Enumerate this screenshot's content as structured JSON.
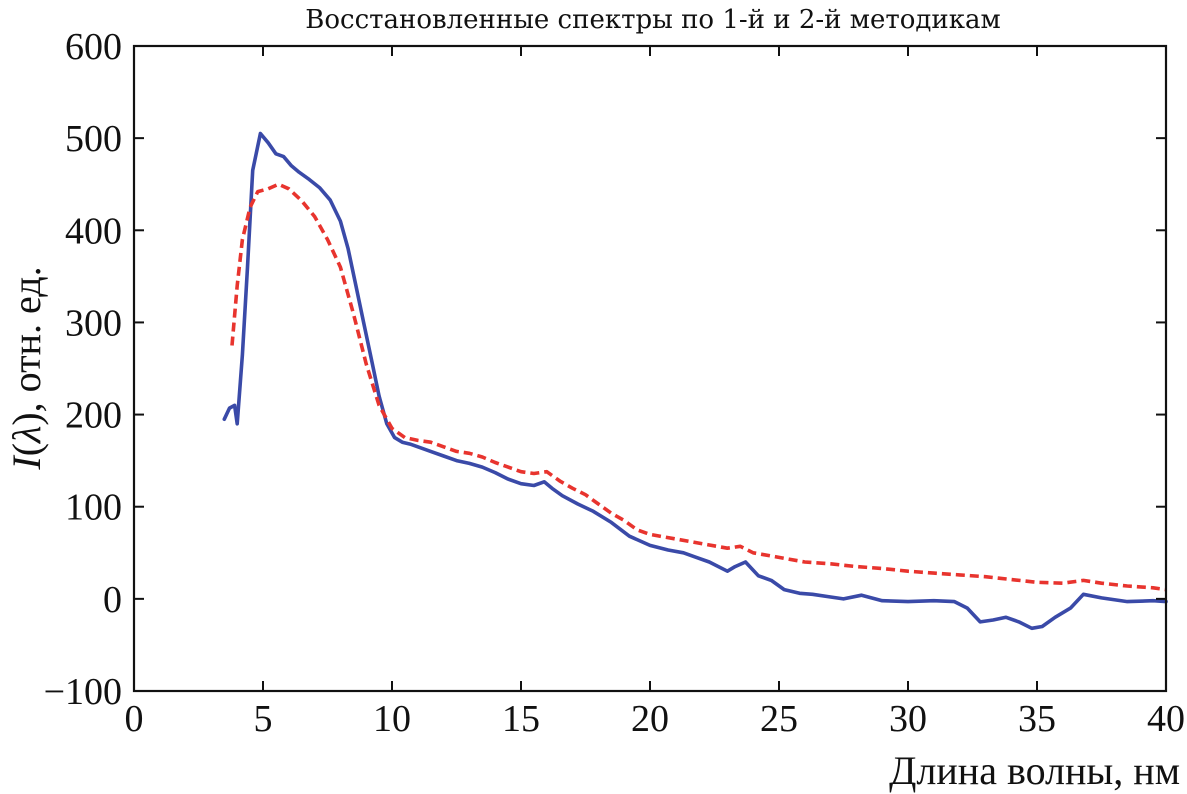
{
  "chart_data": {
    "type": "line",
    "title": "Восстановленные спектры по 1-й и 2-й методикам",
    "xlabel": "Длина волны, нм",
    "ylabel_italic": "I",
    "ylabel_paren_open": "(",
    "ylabel_symbol": "λ",
    "ylabel_rest": "), отн. ед.",
    "xlim": [
      0,
      40
    ],
    "ylim": [
      -100,
      600
    ],
    "xticks": [
      0,
      5,
      10,
      15,
      20,
      25,
      30,
      35,
      40
    ],
    "xtick_labels": [
      "0",
      "5",
      "10",
      "15",
      "20",
      "25",
      "30",
      "35",
      "40"
    ],
    "yticks": [
      -100,
      0,
      100,
      200,
      300,
      400,
      500,
      600
    ],
    "ytick_labels": [
      "−100",
      "0",
      "100",
      "200",
      "300",
      "400",
      "500",
      "600"
    ],
    "grid": false,
    "legend": "none",
    "series": [
      {
        "line_style": "solid",
        "color": "#3a4aa8",
        "x": [
          3.5,
          3.7,
          3.9,
          4.0,
          4.2,
          4.4,
          4.6,
          4.9,
          5.2,
          5.5,
          5.8,
          6.1,
          6.4,
          6.8,
          7.2,
          7.6,
          8.0,
          8.3,
          8.6,
          8.9,
          9.2,
          9.5,
          9.8,
          10.1,
          10.4,
          10.7,
          11.0,
          11.5,
          12.0,
          12.5,
          13.0,
          13.5,
          14.0,
          14.5,
          15.0,
          15.5,
          15.9,
          16.2,
          16.6,
          17.2,
          17.8,
          18.5,
          19.2,
          20.0,
          20.7,
          21.3,
          21.8,
          22.3,
          23.0,
          23.3,
          23.7,
          24.2,
          24.7,
          25.2,
          25.8,
          26.3,
          27.0,
          27.5,
          28.2,
          29.0,
          30.0,
          31.0,
          31.8,
          32.3,
          32.8,
          33.3,
          33.8,
          34.3,
          34.8,
          35.2,
          35.7,
          36.3,
          36.8,
          37.5,
          38.5,
          39.5,
          40.0
        ],
        "y": [
          195,
          207,
          210,
          190,
          265,
          360,
          465,
          505,
          495,
          483,
          480,
          470,
          463,
          455,
          446,
          433,
          410,
          380,
          340,
          300,
          260,
          220,
          190,
          175,
          170,
          168,
          165,
          160,
          155,
          150,
          147,
          143,
          137,
          130,
          125,
          123,
          127,
          120,
          112,
          103,
          95,
          83,
          68,
          58,
          53,
          50,
          45,
          40,
          30,
          35,
          40,
          25,
          20,
          10,
          6,
          5,
          2,
          0,
          4,
          -2,
          -3,
          -2,
          -3,
          -10,
          -25,
          -23,
          -20,
          -25,
          -32,
          -30,
          -20,
          -10,
          5,
          1,
          -3,
          -2,
          -3
        ]
      },
      {
        "line_style": "dashed",
        "color": "#e8342e",
        "x": [
          3.8,
          4.0,
          4.2,
          4.5,
          4.8,
          5.2,
          5.6,
          6.0,
          6.5,
          7.0,
          7.5,
          8.0,
          8.5,
          9.0,
          9.5,
          10.0,
          10.5,
          11.0,
          11.5,
          12.0,
          12.5,
          13.0,
          13.5,
          14.0,
          14.5,
          15.0,
          15.5,
          16.0,
          16.5,
          17.0,
          17.5,
          18.0,
          18.5,
          19.0,
          19.5,
          20.0,
          21.0,
          22.0,
          23.0,
          23.5,
          24.0,
          25.0,
          26.0,
          27.0,
          28.0,
          29.0,
          30.0,
          31.0,
          32.0,
          33.0,
          34.0,
          35.0,
          36.0,
          36.8,
          37.5,
          38.5,
          39.5,
          40.0
        ],
        "y": [
          275,
          340,
          390,
          425,
          442,
          445,
          450,
          445,
          432,
          415,
          390,
          360,
          310,
          255,
          210,
          185,
          175,
          172,
          170,
          165,
          160,
          158,
          154,
          148,
          143,
          138,
          136,
          138,
          128,
          120,
          113,
          103,
          93,
          85,
          75,
          70,
          65,
          60,
          55,
          57,
          50,
          45,
          40,
          38,
          35,
          33,
          30,
          28,
          26,
          24,
          21,
          18,
          17,
          20,
          17,
          14,
          12,
          10
        ]
      }
    ]
  }
}
